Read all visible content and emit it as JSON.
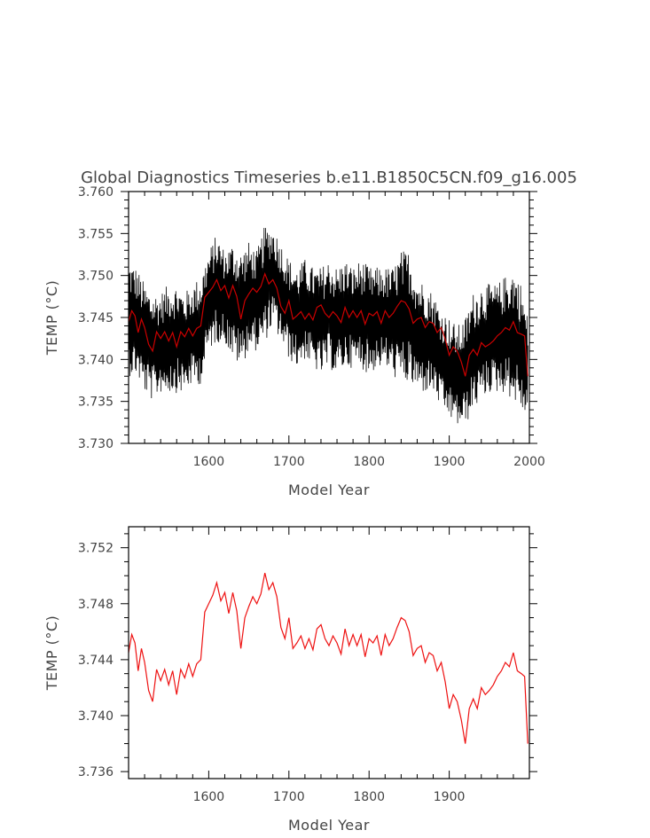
{
  "title": "Global Diagnostics Timeseries b.e11.B1850C5CN.f09_g16.005",
  "colors": {
    "annual": "#000000",
    "smoothed": "#cc0000",
    "smoothed_bottom": "#ee1111",
    "frame": "#000000",
    "text": "#444444"
  },
  "chart_data": [
    {
      "type": "line",
      "title": "Global Diagnostics Timeseries b.e11.B1850C5CN.f09_g16.005",
      "xlabel": "Model Year",
      "ylabel": "TEMP (°C)",
      "xlim": [
        1500,
        2000
      ],
      "ylim": [
        3.73,
        3.76
      ],
      "x_ticks": [
        1600,
        1700,
        1800,
        1900,
        2000
      ],
      "x_tick_labels": [
        "1600",
        "1700",
        "1800",
        "1900",
        "2000"
      ],
      "y_ticks": [
        3.73,
        3.735,
        3.74,
        3.745,
        3.75,
        3.755,
        3.76
      ],
      "y_tick_labels": [
        "3.730",
        "3.735",
        "3.740",
        "3.745",
        "3.750",
        "3.755",
        "3.760"
      ],
      "grid": false,
      "series": [
        {
          "role": "annual_envelope",
          "x": [
            1500,
            1510,
            1520,
            1530,
            1540,
            1550,
            1560,
            1570,
            1580,
            1590,
            1600,
            1610,
            1620,
            1630,
            1640,
            1650,
            1660,
            1670,
            1680,
            1690,
            1700,
            1710,
            1720,
            1730,
            1740,
            1750,
            1760,
            1770,
            1780,
            1790,
            1800,
            1810,
            1820,
            1830,
            1840,
            1850,
            1860,
            1870,
            1880,
            1890,
            1900,
            1910,
            1920,
            1930,
            1940,
            1950,
            1960,
            1970,
            1980,
            1990,
            1998
          ],
          "upper": [
            3.752,
            3.751,
            3.749,
            3.748,
            3.748,
            3.749,
            3.749,
            3.748,
            3.749,
            3.75,
            3.753,
            3.755,
            3.753,
            3.754,
            3.753,
            3.754,
            3.753,
            3.756,
            3.756,
            3.754,
            3.752,
            3.751,
            3.752,
            3.751,
            3.751,
            3.752,
            3.751,
            3.752,
            3.751,
            3.752,
            3.751,
            3.751,
            3.751,
            3.751,
            3.753,
            3.753,
            3.75,
            3.749,
            3.748,
            3.746,
            3.745,
            3.744,
            3.745,
            3.748,
            3.749,
            3.749,
            3.749,
            3.75,
            3.751,
            3.749,
            3.745
          ],
          "lower": [
            3.738,
            3.738,
            3.736,
            3.735,
            3.736,
            3.736,
            3.736,
            3.736,
            3.737,
            3.737,
            3.741,
            3.742,
            3.742,
            3.74,
            3.739,
            3.741,
            3.741,
            3.742,
            3.744,
            3.742,
            3.74,
            3.739,
            3.74,
            3.739,
            3.738,
            3.739,
            3.738,
            3.739,
            3.739,
            3.739,
            3.738,
            3.739,
            3.739,
            3.738,
            3.737,
            3.737,
            3.736,
            3.736,
            3.736,
            3.734,
            3.733,
            3.732,
            3.732,
            3.734,
            3.735,
            3.736,
            3.736,
            3.736,
            3.735,
            3.734,
            3.732
          ]
        },
        {
          "role": "smoothed",
          "x": [
            1500,
            1504,
            1508,
            1512,
            1516,
            1520,
            1525,
            1530,
            1535,
            1540,
            1545,
            1550,
            1555,
            1560,
            1565,
            1570,
            1575,
            1580,
            1585,
            1590,
            1595,
            1600,
            1605,
            1610,
            1615,
            1620,
            1625,
            1630,
            1635,
            1640,
            1645,
            1650,
            1655,
            1660,
            1665,
            1670,
            1675,
            1680,
            1685,
            1690,
            1695,
            1700,
            1705,
            1710,
            1715,
            1720,
            1725,
            1730,
            1735,
            1740,
            1745,
            1750,
            1755,
            1760,
            1765,
            1770,
            1775,
            1780,
            1785,
            1790,
            1795,
            1800,
            1805,
            1810,
            1815,
            1820,
            1825,
            1830,
            1835,
            1840,
            1845,
            1850,
            1855,
            1860,
            1865,
            1870,
            1875,
            1880,
            1885,
            1890,
            1895,
            1900,
            1905,
            1910,
            1915,
            1920,
            1925,
            1930,
            1935,
            1940,
            1945,
            1950,
            1955,
            1960,
            1965,
            1970,
            1975,
            1980,
            1985,
            1990,
            1994,
            1998
          ],
          "values": [
            3.7445,
            3.7458,
            3.7452,
            3.7432,
            3.7448,
            3.7438,
            3.7418,
            3.741,
            3.7433,
            3.7425,
            3.7433,
            3.7422,
            3.7432,
            3.7415,
            3.7433,
            3.7427,
            3.7437,
            3.7428,
            3.7437,
            3.744,
            3.7474,
            3.748,
            3.7486,
            3.7495,
            3.7482,
            3.7488,
            3.7473,
            3.7488,
            3.7475,
            3.7448,
            3.747,
            3.7478,
            3.7485,
            3.748,
            3.7487,
            3.7502,
            3.749,
            3.7495,
            3.7485,
            3.7463,
            3.7455,
            3.747,
            3.7448,
            3.7452,
            3.7457,
            3.7448,
            3.7455,
            3.7447,
            3.7462,
            3.7465,
            3.7455,
            3.745,
            3.7457,
            3.7452,
            3.7444,
            3.7462,
            3.745,
            3.7458,
            3.745,
            3.7458,
            3.7442,
            3.7455,
            3.7452,
            3.7457,
            3.7443,
            3.7458,
            3.745,
            3.7455,
            3.7463,
            3.747,
            3.7468,
            3.746,
            3.7443,
            3.7448,
            3.745,
            3.7438,
            3.7445,
            3.7443,
            3.7432,
            3.7438,
            3.7424,
            3.7405,
            3.7415,
            3.741,
            3.7397,
            3.738,
            3.7405,
            3.7412,
            3.7405,
            3.742,
            3.7415,
            3.7418,
            3.7422,
            3.7428,
            3.7432,
            3.7438,
            3.7435,
            3.7445,
            3.7432,
            3.743,
            3.7428,
            3.738
          ]
        }
      ]
    },
    {
      "type": "line",
      "title": "",
      "xlabel": "Model Year",
      "ylabel": "TEMP (°C)",
      "xlim": [
        1500,
        2000
      ],
      "ylim": [
        3.7355,
        3.7535
      ],
      "x_ticks": [
        1600,
        1700,
        1800,
        1900
      ],
      "x_tick_labels": [
        "1600",
        "1700",
        "1800",
        "1900"
      ],
      "y_ticks": [
        3.736,
        3.74,
        3.744,
        3.748,
        3.752
      ],
      "y_tick_labels": [
        "3.736",
        "3.740",
        "3.744",
        "3.748",
        "3.752"
      ],
      "grid": false,
      "series": [
        {
          "role": "smoothed",
          "x": [
            1500,
            1504,
            1508,
            1512,
            1516,
            1520,
            1525,
            1530,
            1535,
            1540,
            1545,
            1550,
            1555,
            1560,
            1565,
            1570,
            1575,
            1580,
            1585,
            1590,
            1595,
            1600,
            1605,
            1610,
            1615,
            1620,
            1625,
            1630,
            1635,
            1640,
            1645,
            1650,
            1655,
            1660,
            1665,
            1670,
            1675,
            1680,
            1685,
            1690,
            1695,
            1700,
            1705,
            1710,
            1715,
            1720,
            1725,
            1730,
            1735,
            1740,
            1745,
            1750,
            1755,
            1760,
            1765,
            1770,
            1775,
            1780,
            1785,
            1790,
            1795,
            1800,
            1805,
            1810,
            1815,
            1820,
            1825,
            1830,
            1835,
            1840,
            1845,
            1850,
            1855,
            1860,
            1865,
            1870,
            1875,
            1880,
            1885,
            1890,
            1895,
            1900,
            1905,
            1910,
            1915,
            1920,
            1925,
            1930,
            1935,
            1940,
            1945,
            1950,
            1955,
            1960,
            1965,
            1970,
            1975,
            1980,
            1985,
            1990,
            1994,
            1998
          ],
          "values": [
            3.7445,
            3.7458,
            3.7452,
            3.7432,
            3.7448,
            3.7438,
            3.7418,
            3.741,
            3.7433,
            3.7425,
            3.7433,
            3.7422,
            3.7432,
            3.7415,
            3.7433,
            3.7427,
            3.7437,
            3.7428,
            3.7437,
            3.744,
            3.7474,
            3.748,
            3.7486,
            3.7495,
            3.7482,
            3.7488,
            3.7473,
            3.7488,
            3.7475,
            3.7448,
            3.747,
            3.7478,
            3.7485,
            3.748,
            3.7487,
            3.7502,
            3.749,
            3.7495,
            3.7485,
            3.7463,
            3.7455,
            3.747,
            3.7448,
            3.7452,
            3.7457,
            3.7448,
            3.7455,
            3.7447,
            3.7462,
            3.7465,
            3.7455,
            3.745,
            3.7457,
            3.7452,
            3.7444,
            3.7462,
            3.745,
            3.7458,
            3.745,
            3.7458,
            3.7442,
            3.7455,
            3.7452,
            3.7457,
            3.7443,
            3.7458,
            3.745,
            3.7455,
            3.7463,
            3.747,
            3.7468,
            3.746,
            3.7443,
            3.7448,
            3.745,
            3.7438,
            3.7445,
            3.7443,
            3.7432,
            3.7438,
            3.7424,
            3.7405,
            3.7415,
            3.741,
            3.7397,
            3.738,
            3.7405,
            3.7412,
            3.7405,
            3.742,
            3.7415,
            3.7418,
            3.7422,
            3.7428,
            3.7432,
            3.7438,
            3.7435,
            3.7445,
            3.7432,
            3.743,
            3.7428,
            3.738
          ]
        }
      ]
    }
  ]
}
